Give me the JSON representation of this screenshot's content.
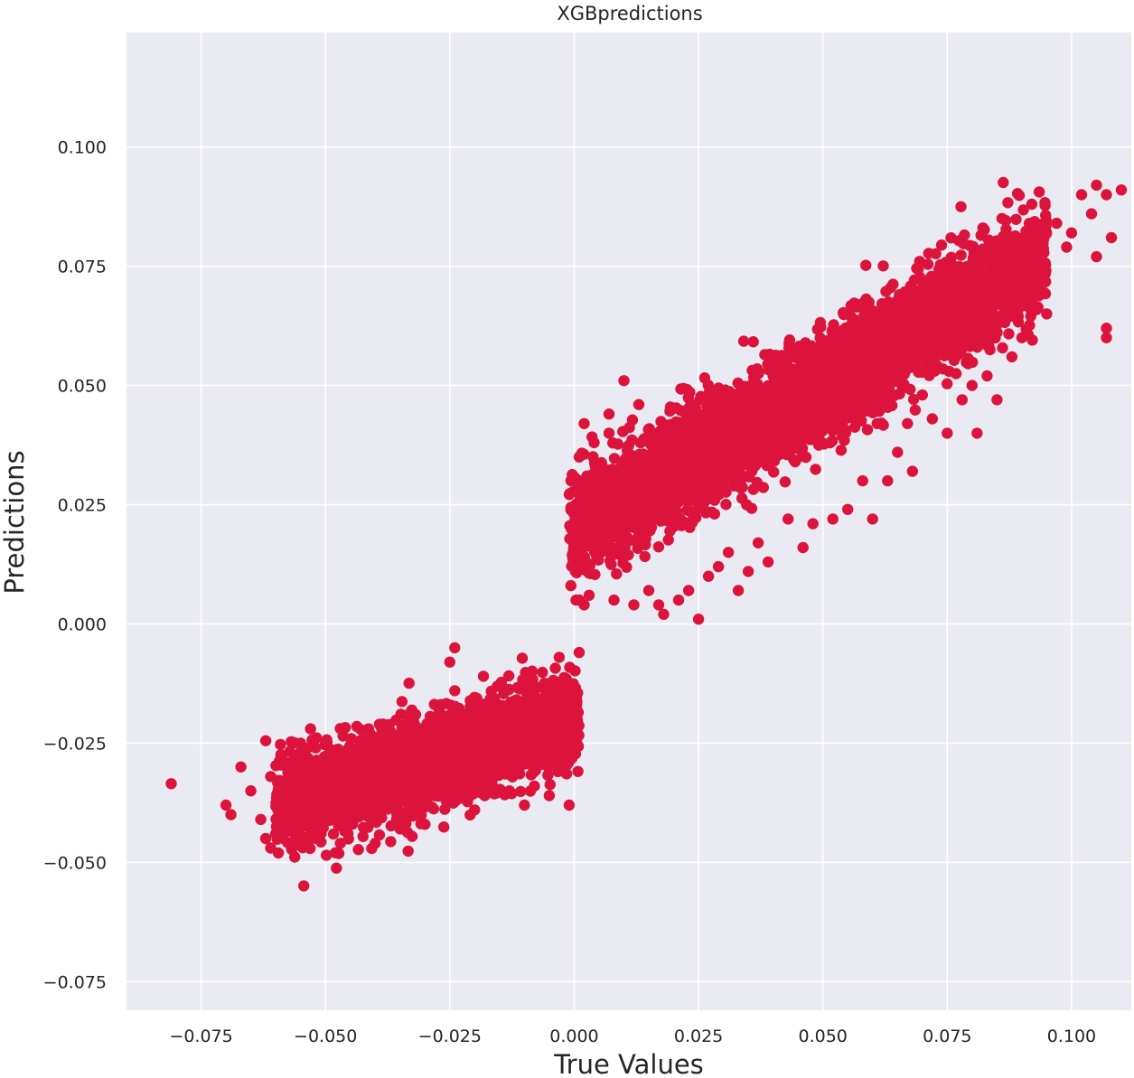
{
  "chart_data": {
    "type": "scatter",
    "title": "XGBpredictions",
    "xlabel": "True Values",
    "ylabel": "Predictions",
    "xlim": [
      -0.09,
      0.112
    ],
    "ylim": [
      -0.081,
      0.124
    ],
    "xticks": [
      -0.075,
      -0.05,
      -0.025,
      0.0,
      0.025,
      0.05,
      0.075,
      0.1
    ],
    "yticks": [
      -0.075,
      -0.05,
      -0.025,
      0.0,
      0.025,
      0.05,
      0.075,
      0.1
    ],
    "xtick_labels": [
      "−0.075",
      "−0.050",
      "−0.025",
      "0.000",
      "0.025",
      "0.050",
      "0.075",
      "0.100"
    ],
    "ytick_labels": [
      "−0.075",
      "−0.050",
      "−0.025",
      "0.000",
      "0.025",
      "0.050",
      "0.075",
      "0.100"
    ],
    "grid": true,
    "colors": {
      "points": "#dc143c",
      "background": "#eaeaf2",
      "grid": "#ffffff"
    },
    "clusters": [
      {
        "name": "",
        "x_range": [
          -0.06,
          0.001
        ],
        "slope": 0.3,
        "intercept": -0.02,
        "y_spread": 0.0045,
        "count": 3200
      },
      {
        "name": "",
        "x_range": [
          -0.001,
          0.095
        ],
        "slope": 0.6,
        "intercept": 0.02,
        "y_spread": 0.0055,
        "count": 4200
      }
    ],
    "series": [
      {
        "name": "",
        "points": [
          [
            -0.081,
            -0.0335
          ],
          [
            -0.07,
            -0.038
          ],
          [
            -0.069,
            -0.04
          ],
          [
            -0.067,
            -0.03
          ],
          [
            -0.065,
            -0.035
          ],
          [
            -0.063,
            -0.041
          ],
          [
            -0.062,
            -0.045
          ],
          [
            -0.061,
            -0.047
          ],
          [
            -0.06,
            -0.044
          ],
          [
            -0.062,
            -0.0245
          ],
          [
            -0.061,
            -0.032
          ],
          [
            -0.059,
            -0.029
          ],
          [
            -0.058,
            -0.042
          ],
          [
            -0.057,
            -0.038
          ],
          [
            -0.055,
            -0.025
          ],
          [
            -0.053,
            -0.022
          ],
          [
            -0.048,
            -0.048
          ],
          [
            -0.047,
            -0.046
          ],
          [
            -0.04,
            -0.046
          ],
          [
            -0.035,
            -0.043
          ],
          [
            -0.033,
            -0.04
          ],
          [
            -0.03,
            -0.042
          ],
          [
            -0.025,
            -0.008
          ],
          [
            -0.024,
            -0.005
          ],
          [
            -0.024,
            -0.014
          ],
          [
            -0.02,
            -0.039
          ],
          [
            -0.018,
            -0.036
          ],
          [
            -0.013,
            -0.035
          ],
          [
            -0.01,
            -0.038
          ],
          [
            -0.008,
            -0.034
          ],
          [
            -0.007,
            -0.028
          ],
          [
            -0.005,
            -0.036
          ],
          [
            -0.003,
            -0.007
          ],
          [
            -0.002,
            -0.031
          ],
          [
            -0.001,
            -0.038
          ],
          [
            0.001,
            -0.006
          ],
          [
            0.001,
            0.03
          ],
          [
            0.001,
            0.005
          ],
          [
            0.002,
            0.004
          ],
          [
            0.002,
            0.042
          ],
          [
            0.001,
            0.035
          ],
          [
            0.003,
            0.006
          ],
          [
            0.004,
            0.038
          ],
          [
            0.007,
            0.044
          ],
          [
            0.007,
            0.04
          ],
          [
            0.008,
            0.005
          ],
          [
            0.01,
            0.051
          ],
          [
            0.012,
            0.004
          ],
          [
            0.013,
            0.046
          ],
          [
            0.015,
            0.007
          ],
          [
            0.017,
            0.004
          ],
          [
            0.018,
            0.002
          ],
          [
            0.021,
            0.005
          ],
          [
            0.023,
            0.007
          ],
          [
            0.025,
            0.001
          ],
          [
            0.027,
            0.01
          ],
          [
            0.029,
            0.012
          ],
          [
            0.031,
            0.015
          ],
          [
            0.033,
            0.007
          ],
          [
            0.035,
            0.011
          ],
          [
            0.037,
            0.017
          ],
          [
            0.039,
            0.013
          ],
          [
            0.04,
            0.052
          ],
          [
            0.043,
            0.022
          ],
          [
            0.045,
            0.056
          ],
          [
            0.046,
            0.016
          ],
          [
            0.048,
            0.021
          ],
          [
            0.05,
            0.059
          ],
          [
            0.052,
            0.022
          ],
          [
            0.055,
            0.024
          ],
          [
            0.058,
            0.03
          ],
          [
            0.06,
            0.022
          ],
          [
            0.062,
            0.064
          ],
          [
            0.063,
            0.03
          ],
          [
            0.065,
            0.036
          ],
          [
            0.067,
            0.042
          ],
          [
            0.068,
            0.032
          ],
          [
            0.07,
            0.048
          ],
          [
            0.072,
            0.043
          ],
          [
            0.075,
            0.04
          ],
          [
            0.076,
            0.072
          ],
          [
            0.078,
            0.047
          ],
          [
            0.08,
            0.05
          ],
          [
            0.081,
            0.04
          ],
          [
            0.083,
            0.052
          ],
          [
            0.085,
            0.047
          ],
          [
            0.086,
            0.085
          ],
          [
            0.088,
            0.056
          ],
          [
            0.09,
            0.06
          ],
          [
            0.092,
            0.088
          ],
          [
            0.093,
            0.066
          ],
          [
            0.095,
            0.065
          ],
          [
            0.097,
            0.084
          ],
          [
            0.099,
            0.079
          ],
          [
            0.1,
            0.082
          ],
          [
            0.102,
            0.09
          ],
          [
            0.104,
            0.086
          ],
          [
            0.105,
            0.092
          ],
          [
            0.105,
            0.077
          ],
          [
            0.107,
            0.062
          ],
          [
            0.107,
            0.06
          ],
          [
            0.107,
            0.09
          ],
          [
            0.108,
            0.081
          ],
          [
            0.11,
            0.091
          ]
        ]
      }
    ]
  }
}
